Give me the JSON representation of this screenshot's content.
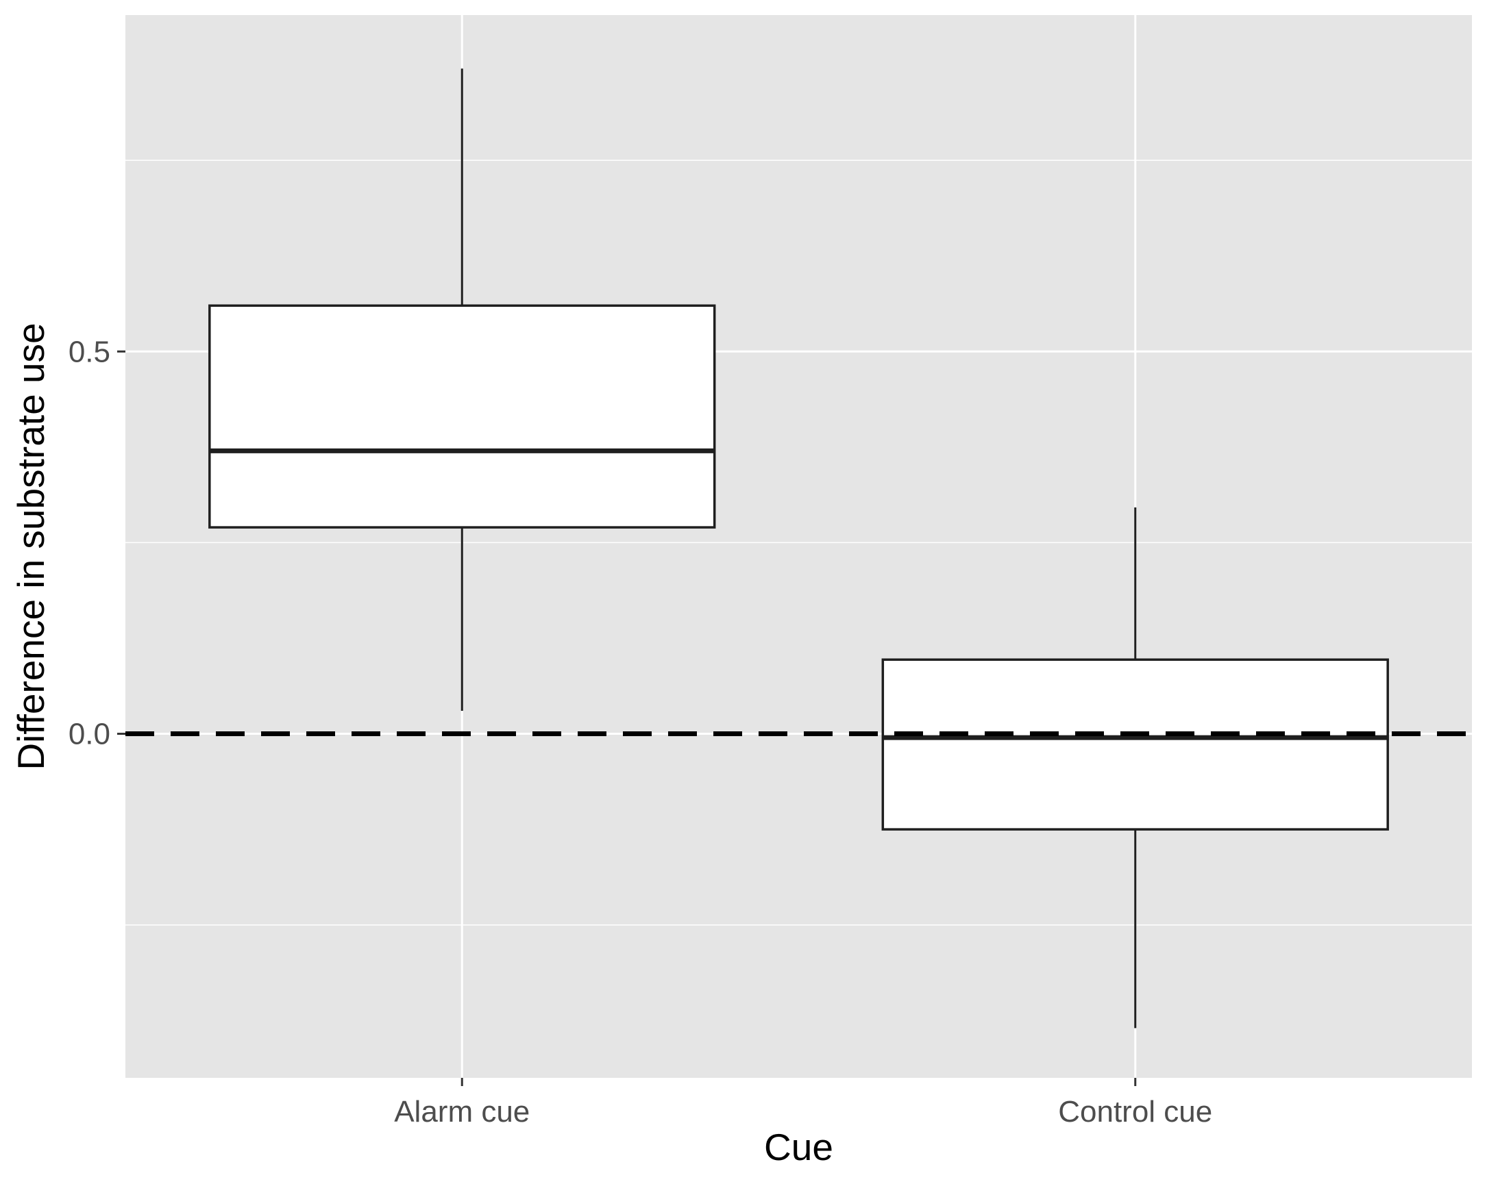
{
  "chart_data": {
    "type": "boxplot",
    "title": "",
    "xlabel": "Cue",
    "ylabel": "Difference in substrate use",
    "categories": [
      "Alarm cue",
      "Control cue"
    ],
    "boxes": [
      {
        "category": "Alarm cue",
        "whisker_low": 0.03,
        "q1": 0.27,
        "median": 0.37,
        "q3": 0.56,
        "whisker_high": 0.87
      },
      {
        "category": "Control cue",
        "whisker_low": -0.385,
        "q1": -0.125,
        "median": -0.005,
        "q3": 0.097,
        "whisker_high": 0.296
      }
    ],
    "ylim": [
      -0.45,
      0.94
    ],
    "y_ticks": [
      0.0,
      0.5
    ],
    "y_tick_labels": [
      "0.0",
      "0.5"
    ],
    "y_minor_gridlines": [
      -0.25,
      0.25,
      0.75
    ],
    "reference_line": {
      "y": 0.0,
      "style": "dashed",
      "color": "#000000"
    },
    "grid": true,
    "panel_background": "#e5e5e5",
    "gridline_color": "#ffffff",
    "box_fill": "#ffffff",
    "box_stroke": "#1f1f1f"
  }
}
